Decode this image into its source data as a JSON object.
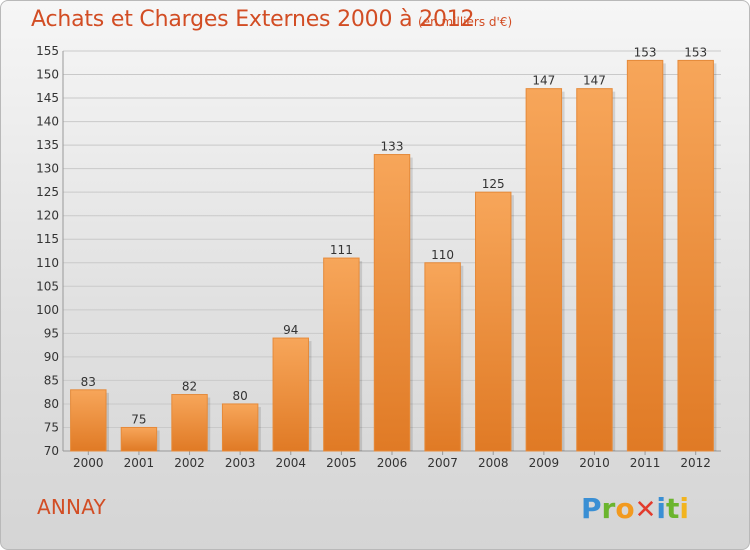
{
  "header": {
    "title": "Achats et Charges Externes 2000 à 2012",
    "subtitle": "(en milliers d'€)"
  },
  "footer": {
    "commune": "ANNAY",
    "logo_text": "Proxiti"
  },
  "colors": {
    "bar_light": "#f7a65a",
    "bar_dark": "#e07a25",
    "title": "#d24d24",
    "grid": "#c9c9c9",
    "axis_text": "#333333"
  },
  "chart_data": {
    "type": "bar",
    "title": "Achats et Charges Externes 2000 à 2012",
    "subtitle": "(en milliers d'€)",
    "categories": [
      "2000",
      "2001",
      "2002",
      "2003",
      "2004",
      "2005",
      "2006",
      "2007",
      "2008",
      "2009",
      "2010",
      "2011",
      "2012"
    ],
    "values": [
      83,
      75,
      82,
      80,
      94,
      111,
      133,
      110,
      125,
      147,
      147,
      153,
      153
    ],
    "ylim": [
      70,
      155
    ],
    "yticks": [
      70,
      75,
      80,
      85,
      90,
      95,
      100,
      105,
      110,
      115,
      120,
      125,
      130,
      135,
      140,
      145,
      150,
      155
    ],
    "grid": true,
    "data_labels": true
  }
}
